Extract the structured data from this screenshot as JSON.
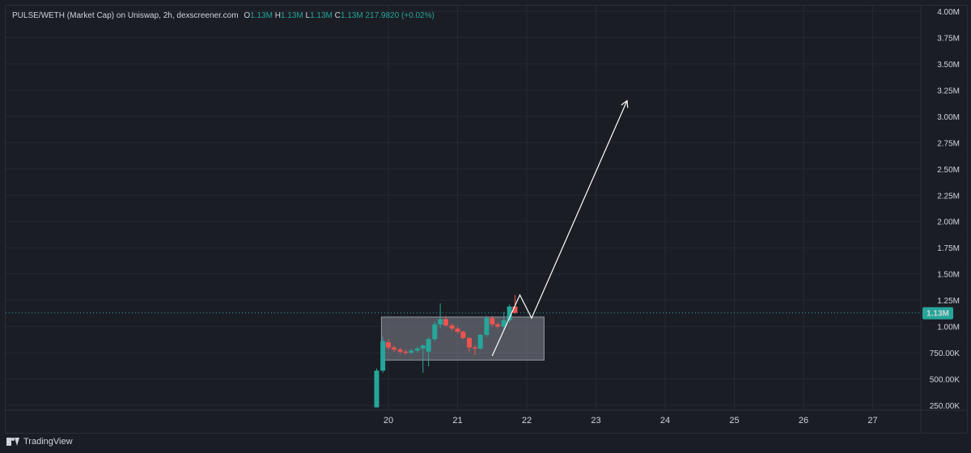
{
  "legend": {
    "symbol": "PULSE/WETH (Market Cap) on Uniswap, 2h, dexscreener.com",
    "o_label": "O",
    "o_value": "1.13M",
    "h_label": "H",
    "h_value": "1.13M",
    "l_label": "L",
    "l_value": "1.13M",
    "c_label": "C",
    "c_value": "1.13M",
    "change": "217.9820 (+0.02%)"
  },
  "price_badge": "1.13M",
  "footer": {
    "brand": "TradingView",
    "logo_icon": "tradingview-logo-icon"
  },
  "colors": {
    "up": "#26a69a",
    "down": "#ef5350",
    "bg": "#1b1d25",
    "grid": "#252932",
    "zone": "#787b86"
  },
  "chart_data": {
    "type": "candlestick",
    "y_ticks": [
      "4.00M",
      "3.75M",
      "3.50M",
      "3.25M",
      "3.00M",
      "2.75M",
      "2.50M",
      "2.25M",
      "2.00M",
      "1.75M",
      "1.50M",
      "1.25M",
      "1.00M",
      "750.00K",
      "500.00K",
      "250.00K"
    ],
    "y_tick_values": [
      4000000,
      3750000,
      3500000,
      3250000,
      3000000,
      2750000,
      2500000,
      2250000,
      2000000,
      1750000,
      1500000,
      1250000,
      1000000,
      750000,
      500000,
      250000
    ],
    "ylim": [
      230000,
      4000000
    ],
    "x_ticks": [
      "20",
      "21",
      "22",
      "23",
      "24",
      "25",
      "26",
      "27"
    ],
    "x_tick_values": [
      20,
      21,
      22,
      23,
      24,
      25,
      26,
      27
    ],
    "xlim": [
      14.4,
      27.9
    ],
    "current_value": 1130000,
    "candles": [
      {
        "t": 19.83,
        "o": 230000,
        "h": 600000,
        "l": 230000,
        "c": 580000
      },
      {
        "t": 19.92,
        "o": 580000,
        "h": 900000,
        "l": 560000,
        "c": 860000
      },
      {
        "t": 20.0,
        "o": 850000,
        "h": 880000,
        "l": 780000,
        "c": 800000
      },
      {
        "t": 20.08,
        "o": 800000,
        "h": 820000,
        "l": 760000,
        "c": 780000
      },
      {
        "t": 20.17,
        "o": 780000,
        "h": 800000,
        "l": 740000,
        "c": 760000
      },
      {
        "t": 20.25,
        "o": 760000,
        "h": 780000,
        "l": 730000,
        "c": 750000
      },
      {
        "t": 20.33,
        "o": 750000,
        "h": 790000,
        "l": 740000,
        "c": 770000
      },
      {
        "t": 20.42,
        "o": 770000,
        "h": 810000,
        "l": 750000,
        "c": 790000
      },
      {
        "t": 20.5,
        "o": 790000,
        "h": 830000,
        "l": 560000,
        "c": 820000
      },
      {
        "t": 20.58,
        "o": 760000,
        "h": 900000,
        "l": 620000,
        "c": 880000
      },
      {
        "t": 20.67,
        "o": 880000,
        "h": 1050000,
        "l": 860000,
        "c": 1020000
      },
      {
        "t": 20.75,
        "o": 1020000,
        "h": 1220000,
        "l": 980000,
        "c": 1070000
      },
      {
        "t": 20.83,
        "o": 1070000,
        "h": 1100000,
        "l": 1000000,
        "c": 1010000
      },
      {
        "t": 20.92,
        "o": 1010000,
        "h": 1030000,
        "l": 960000,
        "c": 980000
      },
      {
        "t": 21.0,
        "o": 980000,
        "h": 1000000,
        "l": 930000,
        "c": 950000
      },
      {
        "t": 21.08,
        "o": 950000,
        "h": 960000,
        "l": 880000,
        "c": 890000
      },
      {
        "t": 21.17,
        "o": 890000,
        "h": 900000,
        "l": 760000,
        "c": 800000
      },
      {
        "t": 21.25,
        "o": 800000,
        "h": 820000,
        "l": 730000,
        "c": 790000
      },
      {
        "t": 21.33,
        "o": 790000,
        "h": 930000,
        "l": 780000,
        "c": 920000
      },
      {
        "t": 21.42,
        "o": 920000,
        "h": 1100000,
        "l": 900000,
        "c": 1080000
      },
      {
        "t": 21.5,
        "o": 1080000,
        "h": 1100000,
        "l": 1000000,
        "c": 1020000
      },
      {
        "t": 21.58,
        "o": 1020000,
        "h": 1040000,
        "l": 980000,
        "c": 1000000
      },
      {
        "t": 21.67,
        "o": 1000000,
        "h": 1140000,
        "l": 960000,
        "c": 1060000
      },
      {
        "t": 21.75,
        "o": 1060000,
        "h": 1210000,
        "l": 1040000,
        "c": 1190000
      },
      {
        "t": 21.83,
        "o": 1190000,
        "h": 1300000,
        "l": 1120000,
        "c": 1130000
      }
    ],
    "annotations": [
      {
        "type": "rectangle",
        "x1": 19.9,
        "x2": 22.25,
        "y1": 680000,
        "y2": 1090000
      },
      {
        "type": "arrow",
        "points": [
          [
            21.5,
            720000
          ],
          [
            21.9,
            1300000
          ],
          [
            22.07,
            1080000
          ],
          [
            23.45,
            3150000
          ]
        ]
      }
    ]
  }
}
